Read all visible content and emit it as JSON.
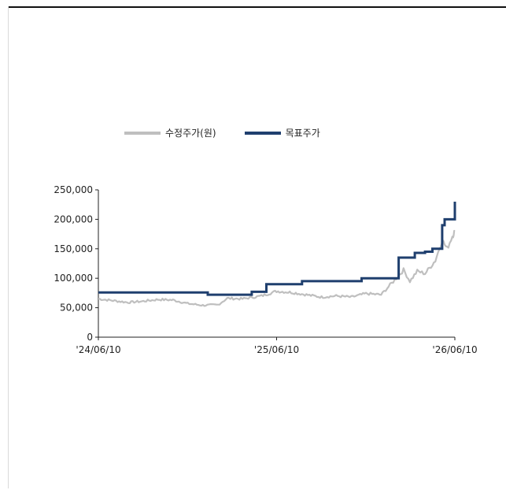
{
  "chart_data": {
    "type": "line",
    "legend": {
      "placement": "top",
      "entries": [
        {
          "name": "수정주가(원)",
          "color": "#bfbfbf"
        },
        {
          "name": "목표주가",
          "color": "#1f3f6e"
        }
      ]
    },
    "x_ticks": [
      "'24/06/10",
      "'25/06/10",
      "'26/06/10"
    ],
    "x_range": [
      "2024-06-10",
      "2026-06-10"
    ],
    "y_ticks": [
      "0",
      "50,000",
      "100,000",
      "150,000",
      "200,000",
      "250,000"
    ],
    "ylim": [
      0,
      250000
    ],
    "grid": false,
    "series": [
      {
        "name": "수정주가(원)",
        "color": "#bfbfbf",
        "points": [
          [
            "2024-06-10",
            65000
          ],
          [
            "2024-07-10",
            62000
          ],
          [
            "2024-08-10",
            59000
          ],
          [
            "2024-09-10",
            61000
          ],
          [
            "2024-10-10",
            64000
          ],
          [
            "2024-11-10",
            63000
          ],
          [
            "2024-12-10",
            57000
          ],
          [
            "2025-01-10",
            54000
          ],
          [
            "2025-02-10",
            55000
          ],
          [
            "2025-03-01",
            66000
          ],
          [
            "2025-04-01",
            65000
          ],
          [
            "2025-05-10",
            70000
          ],
          [
            "2025-06-10",
            78000
          ],
          [
            "2025-07-10",
            76000
          ],
          [
            "2025-08-10",
            72000
          ],
          [
            "2025-09-10",
            68000
          ],
          [
            "2025-10-10",
            70000
          ],
          [
            "2025-11-10",
            68000
          ],
          [
            "2025-12-10",
            74000
          ],
          [
            "2026-01-10",
            72000
          ],
          [
            "2026-02-10",
            100000
          ],
          [
            "2026-02-25",
            114000
          ],
          [
            "2026-03-10",
            95000
          ],
          [
            "2026-03-25",
            112000
          ],
          [
            "2026-04-10",
            108000
          ],
          [
            "2026-05-01",
            130000
          ],
          [
            "2026-05-15",
            165000
          ],
          [
            "2026-05-25",
            150000
          ],
          [
            "2026-06-05",
            172000
          ],
          [
            "2026-06-10",
            180000
          ]
        ]
      },
      {
        "name": "목표주가",
        "color": "#1f3f6e",
        "steps": [
          [
            "2024-06-10",
            76000
          ],
          [
            "2025-01-20",
            72000
          ],
          [
            "2025-04-20",
            77000
          ],
          [
            "2025-05-20",
            90000
          ],
          [
            "2025-08-01",
            95000
          ],
          [
            "2025-12-01",
            100000
          ],
          [
            "2026-02-15",
            135000
          ],
          [
            "2026-03-20",
            143000
          ],
          [
            "2026-04-10",
            145000
          ],
          [
            "2026-04-25",
            150000
          ],
          [
            "2026-05-15",
            190000
          ],
          [
            "2026-05-20",
            200000
          ],
          [
            "2026-06-10",
            230000
          ]
        ]
      }
    ]
  }
}
